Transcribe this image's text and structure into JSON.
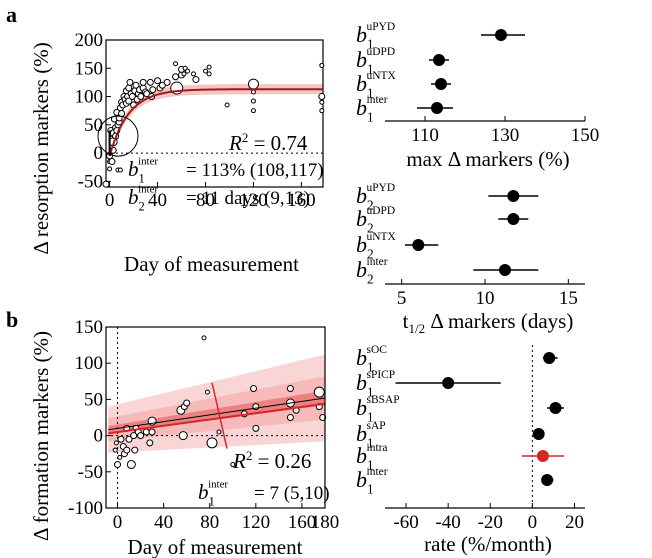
{
  "chart_data": [
    {
      "panel": "a",
      "type": "scatter",
      "xlabel": "Day of measurement",
      "ylabel": "Δ resorption markers (%)",
      "xlim": [
        -3,
        178
      ],
      "ylim": [
        -60,
        200
      ],
      "xticks": [
        0,
        40,
        80,
        120,
        160
      ],
      "yticks": [
        -50,
        0,
        50,
        100,
        150,
        200
      ],
      "fit": {
        "type": "exponential-approach",
        "plateau": 113,
        "half_life_days": 11,
        "color": "#9b1c1c",
        "band_color": "#f4aaaa"
      },
      "points": [
        {
          "x": 0,
          "y": -5,
          "r": 3
        },
        {
          "x": 0,
          "y": -15,
          "r": 2
        },
        {
          "x": 0,
          "y": -28,
          "r": 2
        },
        {
          "x": 1,
          "y": 40,
          "r": 3
        },
        {
          "x": 2,
          "y": -15,
          "r": 3
        },
        {
          "x": 2,
          "y": 25,
          "r": 3
        },
        {
          "x": 3,
          "y": 5,
          "r": 3
        },
        {
          "x": 3,
          "y": 20,
          "r": 4
        },
        {
          "x": 4,
          "y": 35,
          "r": 4
        },
        {
          "x": 4,
          "y": 60,
          "r": 3
        },
        {
          "x": 5,
          "y": 30,
          "r": 3
        },
        {
          "x": 5,
          "y": 45,
          "r": 3
        },
        {
          "x": 6,
          "y": 40,
          "r": 3
        },
        {
          "x": 6,
          "y": 72,
          "r": 3
        },
        {
          "x": 7,
          "y": 50,
          "r": 3
        },
        {
          "x": 7,
          "y": -30,
          "r": 2
        },
        {
          "x": 8,
          "y": 55,
          "r": 3
        },
        {
          "x": 8,
          "y": 62,
          "r": 3
        },
        {
          "x": 9,
          "y": 80,
          "r": 3
        },
        {
          "x": 9,
          "y": -30,
          "r": 2
        },
        {
          "x": 10,
          "y": 70,
          "r": 3
        },
        {
          "x": 10,
          "y": 90,
          "r": 3
        },
        {
          "x": 11,
          "y": 85,
          "r": 3
        },
        {
          "x": 12,
          "y": 100,
          "r": 3
        },
        {
          "x": 13,
          "y": 95,
          "r": 3
        },
        {
          "x": 14,
          "y": 110,
          "r": 3
        },
        {
          "x": 14,
          "y": 88,
          "r": 3
        },
        {
          "x": 15,
          "y": 100,
          "r": 3
        },
        {
          "x": 16,
          "y": 115,
          "r": 3
        },
        {
          "x": 16,
          "y": 92,
          "r": 3
        },
        {
          "x": 17,
          "y": 125,
          "r": 3
        },
        {
          "x": 18,
          "y": 105,
          "r": 3
        },
        {
          "x": 19,
          "y": 100,
          "r": 3
        },
        {
          "x": 20,
          "y": 85,
          "r": 3
        },
        {
          "x": 21,
          "y": 110,
          "r": 3
        },
        {
          "x": 22,
          "y": 120,
          "r": 3
        },
        {
          "x": 23,
          "y": 95,
          "r": 3
        },
        {
          "x": 24,
          "y": 105,
          "r": 3
        },
        {
          "x": 25,
          "y": 112,
          "r": 3
        },
        {
          "x": 26,
          "y": 100,
          "r": 3
        },
        {
          "x": 28,
          "y": 115,
          "r": 3
        },
        {
          "x": 28,
          "y": 125,
          "r": 3
        },
        {
          "x": 30,
          "y": 108,
          "r": 3
        },
        {
          "x": 31,
          "y": 105,
          "r": 3
        },
        {
          "x": 34,
          "y": 125,
          "r": 3
        },
        {
          "x": 35,
          "y": 100,
          "r": 3
        },
        {
          "x": 36,
          "y": 112,
          "r": 3
        },
        {
          "x": 40,
          "y": 128,
          "r": 3
        },
        {
          "x": 42,
          "y": 115,
          "r": 3
        },
        {
          "x": 44,
          "y": 120,
          "r": 3
        },
        {
          "x": 48,
          "y": 125,
          "r": 3
        },
        {
          "x": 55,
          "y": 135,
          "r": 3
        },
        {
          "x": 55,
          "y": 158,
          "r": 2
        },
        {
          "x": 56,
          "y": 115,
          "r": 6
        },
        {
          "x": 60,
          "y": 138,
          "r": 3
        },
        {
          "x": 60,
          "y": 148,
          "r": 3
        },
        {
          "x": 62,
          "y": 140,
          "r": 2
        },
        {
          "x": 63,
          "y": 150,
          "r": 2
        },
        {
          "x": 65,
          "y": 145,
          "r": 2
        },
        {
          "x": 70,
          "y": 140,
          "r": 2
        },
        {
          "x": 72,
          "y": 130,
          "r": 3
        },
        {
          "x": 80,
          "y": 145,
          "r": 2
        },
        {
          "x": 83,
          "y": 152,
          "r": 2
        },
        {
          "x": 83,
          "y": 140,
          "r": 2
        },
        {
          "x": 98,
          "y": 85,
          "r": 2
        },
        {
          "x": 120,
          "y": 122,
          "r": 5
        },
        {
          "x": 120,
          "y": 75,
          "r": 2
        },
        {
          "x": 120,
          "y": 92,
          "r": 2
        },
        {
          "x": 120,
          "y": 108,
          "r": 2
        },
        {
          "x": 177,
          "y": 155,
          "r": 2
        },
        {
          "x": 177,
          "y": 100,
          "r": 3
        },
        {
          "x": 177,
          "y": 90,
          "r": 2
        },
        {
          "x": 177,
          "y": 75,
          "r": 2
        },
        {
          "x": -3,
          "y": -55,
          "r": 3
        }
      ],
      "zoom_circle": {
        "x": 7,
        "y": 30
      },
      "annotations": {
        "r2_label": "R",
        "r2_sup": "2",
        "r2_value": " = 0.74",
        "b1_base": "b",
        "b1_sub": "1",
        "b1_sup": "inter",
        "b1_value": "= 113% (108,117)",
        "b2_base": "b",
        "b2_sub": "2",
        "b2_sup": "inter",
        "b2_value": "= 11 days (9,13)"
      }
    },
    {
      "panel": "a-top-right",
      "type": "forest",
      "xlabel": "max Δ markers (%)",
      "xlim": [
        100,
        150
      ],
      "xticks": [
        110,
        130,
        150
      ],
      "rows": [
        {
          "base": "b",
          "sub": "1",
          "sup": "uPYD",
          "value": 129,
          "lo": 124,
          "hi": 135
        },
        {
          "base": "b",
          "sub": "1",
          "sup": "uDPD",
          "value": 113.5,
          "lo": 111,
          "hi": 116
        },
        {
          "base": "b",
          "sub": "1",
          "sup": "uNTX",
          "value": 114,
          "lo": 111.5,
          "hi": 116.5
        },
        {
          "base": "b",
          "sub": "1",
          "sup": "inter",
          "value": 113,
          "lo": 108,
          "hi": 117
        }
      ]
    },
    {
      "panel": "a-bottom-right",
      "type": "forest",
      "xlabel": "t1/2 Δ markers (days)",
      "xlabel_parts": {
        "base": "t",
        "sub": "1/2",
        "rest": " Δ markers (days)"
      },
      "xlim": [
        4,
        16
      ],
      "xticks": [
        5,
        10,
        15
      ],
      "rows": [
        {
          "base": "b",
          "sub": "2",
          "sup": "uPYD",
          "value": 11.7,
          "lo": 10.2,
          "hi": 13.2
        },
        {
          "base": "b",
          "sub": "2",
          "sup": "uDPD",
          "value": 11.7,
          "lo": 10.8,
          "hi": 12.6
        },
        {
          "base": "b",
          "sub": "2",
          "sup": "uNTX",
          "value": 6,
          "lo": 5.2,
          "hi": 7.2
        },
        {
          "base": "b",
          "sub": "2",
          "sup": "inter",
          "value": 11.2,
          "lo": 9.3,
          "hi": 13.2
        }
      ]
    },
    {
      "panel": "b",
      "type": "scatter",
      "xlabel": "Day of measurement",
      "ylabel": "Δ formation markers (%)",
      "xlim": [
        -10,
        180
      ],
      "ylim": [
        -100,
        150
      ],
      "xticks": [
        0,
        40,
        80,
        120,
        160,
        180
      ],
      "xtick_labels": [
        "0",
        "40",
        "80",
        "120",
        "160",
        "180"
      ],
      "yticks": [
        -100,
        -50,
        0,
        50,
        100,
        150
      ],
      "fit": {
        "type": "linear",
        "intercept": 10,
        "slope_per_day": 0.2333,
        "color": "#d62728",
        "band_color": "#f6b3b3"
      },
      "points": [
        {
          "x": -2,
          "y": -20,
          "r": 2
        },
        {
          "x": -1,
          "y": -10,
          "r": 2
        },
        {
          "x": 0,
          "y": -40,
          "r": 3
        },
        {
          "x": 2,
          "y": -30,
          "r": 2
        },
        {
          "x": 3,
          "y": -5,
          "r": 3
        },
        {
          "x": 5,
          "y": -15,
          "r": 3
        },
        {
          "x": 6,
          "y": -25,
          "r": 3
        },
        {
          "x": 8,
          "y": -20,
          "r": 3
        },
        {
          "x": 8,
          "y": 10,
          "r": 3
        },
        {
          "x": 10,
          "y": -5,
          "r": 3
        },
        {
          "x": 12,
          "y": -40,
          "r": 4
        },
        {
          "x": 14,
          "y": 0,
          "r": 3
        },
        {
          "x": 15,
          "y": -20,
          "r": 3
        },
        {
          "x": 16,
          "y": 10,
          "r": 3
        },
        {
          "x": 18,
          "y": 5,
          "r": 3
        },
        {
          "x": 20,
          "y": 0,
          "r": 3
        },
        {
          "x": 25,
          "y": 5,
          "r": 3
        },
        {
          "x": 28,
          "y": -10,
          "r": 3
        },
        {
          "x": 30,
          "y": 20,
          "r": 4
        },
        {
          "x": 30,
          "y": 5,
          "r": 3
        },
        {
          "x": 55,
          "y": 35,
          "r": 4
        },
        {
          "x": 57,
          "y": 0,
          "r": 4
        },
        {
          "x": 58,
          "y": 40,
          "r": 3
        },
        {
          "x": 60,
          "y": 45,
          "r": 3
        },
        {
          "x": 75,
          "y": 135,
          "r": 2
        },
        {
          "x": 78,
          "y": 60,
          "r": 2
        },
        {
          "x": 82,
          "y": -10,
          "r": 5
        },
        {
          "x": 88,
          "y": 5,
          "r": 2
        },
        {
          "x": 100,
          "y": -40,
          "r": 2
        },
        {
          "x": 110,
          "y": 30,
          "r": 3
        },
        {
          "x": 118,
          "y": 65,
          "r": 3
        },
        {
          "x": 120,
          "y": 10,
          "r": 3
        },
        {
          "x": 120,
          "y": 40,
          "r": 3
        },
        {
          "x": 150,
          "y": 45,
          "r": 4
        },
        {
          "x": 150,
          "y": 65,
          "r": 3
        },
        {
          "x": 150,
          "y": 25,
          "r": 3
        },
        {
          "x": 155,
          "y": 35,
          "r": 3
        },
        {
          "x": 175,
          "y": 60,
          "r": 5
        },
        {
          "x": 175,
          "y": 40,
          "r": 3
        },
        {
          "x": 178,
          "y": 25,
          "r": 3
        }
      ],
      "annotations": {
        "r2_label": "R",
        "r2_sup": "2",
        "r2_value": " = 0.26",
        "b1_base": "b",
        "b1_sub": "1",
        "b1_sup": "inter",
        "b1_value": "= 7 (5,10)"
      }
    },
    {
      "panel": "b-right",
      "type": "forest",
      "xlabel": "rate (%/month)",
      "xlim": [
        -70,
        25
      ],
      "xticks": [
        -60,
        -40,
        -20,
        0,
        20
      ],
      "rows": [
        {
          "base": "b",
          "sub": "1",
          "sup": "sOC",
          "value": 8,
          "lo": 5,
          "hi": 12,
          "color": "#000000"
        },
        {
          "base": "b",
          "sub": "1",
          "sup": "sPICP",
          "value": -40,
          "lo": -65,
          "hi": -15,
          "color": "#000000"
        },
        {
          "base": "b",
          "sub": "1",
          "sup": "sBSAP",
          "value": 11,
          "lo": 7,
          "hi": 15,
          "color": "#000000"
        },
        {
          "base": "b",
          "sub": "1",
          "sup": "sAP",
          "value": 3,
          "lo": 1,
          "hi": 5,
          "color": "#000000"
        },
        {
          "base": "b",
          "sub": "1",
          "sup": "intra",
          "value": 5,
          "lo": -5,
          "hi": 15,
          "color": "#d62728"
        },
        {
          "base": "b",
          "sub": "1",
          "sup": "inter",
          "value": 7,
          "lo": 5,
          "hi": 10,
          "color": "#000000"
        }
      ]
    }
  ],
  "panel_labels": {
    "a": "a",
    "b": "b"
  }
}
